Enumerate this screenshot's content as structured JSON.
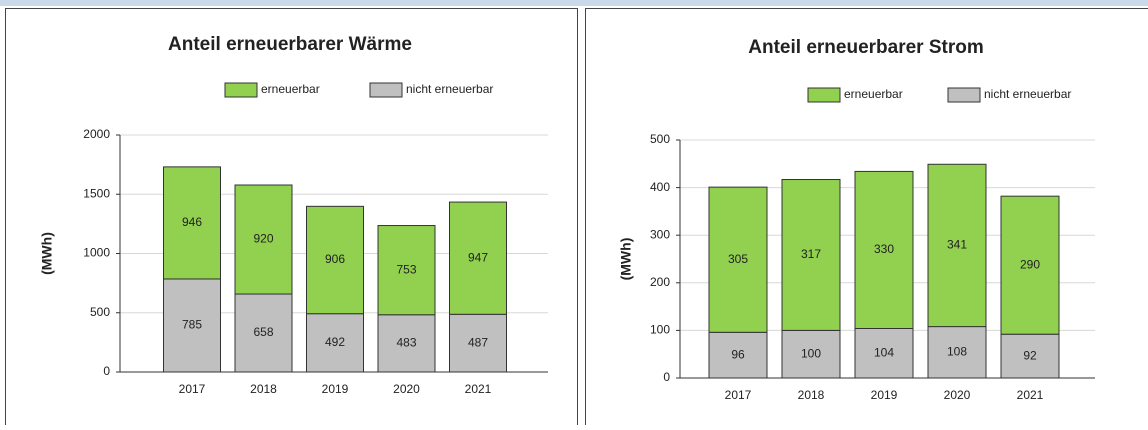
{
  "chart_data": [
    {
      "type": "bar",
      "stacked": true,
      "title": "Anteil erneuerbarer Wärme",
      "ylabel": "(MWh)",
      "categories": [
        "2017",
        "2018",
        "2019",
        "2020",
        "2021"
      ],
      "series": [
        {
          "name": "nicht erneuerbar",
          "color": "#c0c0c0",
          "values": [
            785,
            658,
            492,
            483,
            487
          ]
        },
        {
          "name": "erneuerbar",
          "color": "#92d050",
          "values": [
            946,
            920,
            906,
            753,
            947
          ]
        }
      ],
      "ylim": [
        0,
        2000
      ],
      "yticks": [
        0,
        500,
        1000,
        1500,
        2000
      ],
      "grid": true
    },
    {
      "type": "bar",
      "stacked": true,
      "title": "Anteil erneuerbarer Strom",
      "ylabel": "(MWh)",
      "categories": [
        "2017",
        "2018",
        "2019",
        "2020",
        "2021"
      ],
      "series": [
        {
          "name": "nicht erneuerbar",
          "color": "#c0c0c0",
          "values": [
            96,
            100,
            104,
            108,
            92
          ]
        },
        {
          "name": "erneuerbar",
          "color": "#92d050",
          "values": [
            305,
            317,
            330,
            341,
            290
          ]
        }
      ],
      "ylim": [
        0,
        500
      ],
      "yticks": [
        0,
        100,
        200,
        300,
        400,
        500
      ],
      "grid": true
    }
  ]
}
